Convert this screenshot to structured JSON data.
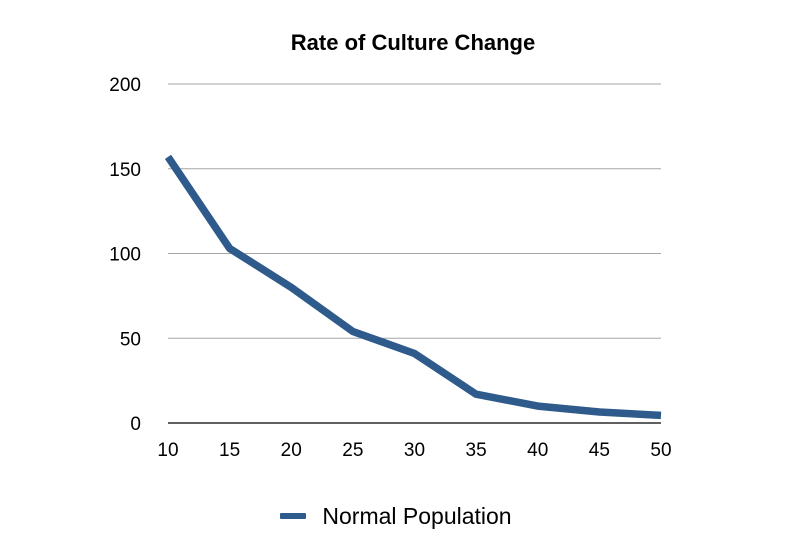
{
  "chart_data": {
    "type": "line",
    "title": "Rate of Culture Change",
    "xlabel": "",
    "ylabel": "",
    "x": [
      10,
      15,
      20,
      25,
      30,
      35,
      40,
      45,
      50
    ],
    "series": [
      {
        "name": "Normal Population",
        "color": "#2e5b8c",
        "values": [
          157,
          103,
          80,
          54,
          41,
          17,
          10,
          6.5,
          4.5
        ]
      }
    ],
    "xlim": [
      10,
      50
    ],
    "ylim": [
      0,
      200
    ],
    "xticks": [
      10,
      15,
      20,
      25,
      30,
      35,
      40,
      45,
      50
    ],
    "yticks": [
      0,
      50,
      100,
      150,
      200
    ],
    "grid": "horizontal",
    "legend_position": "bottom-center"
  }
}
